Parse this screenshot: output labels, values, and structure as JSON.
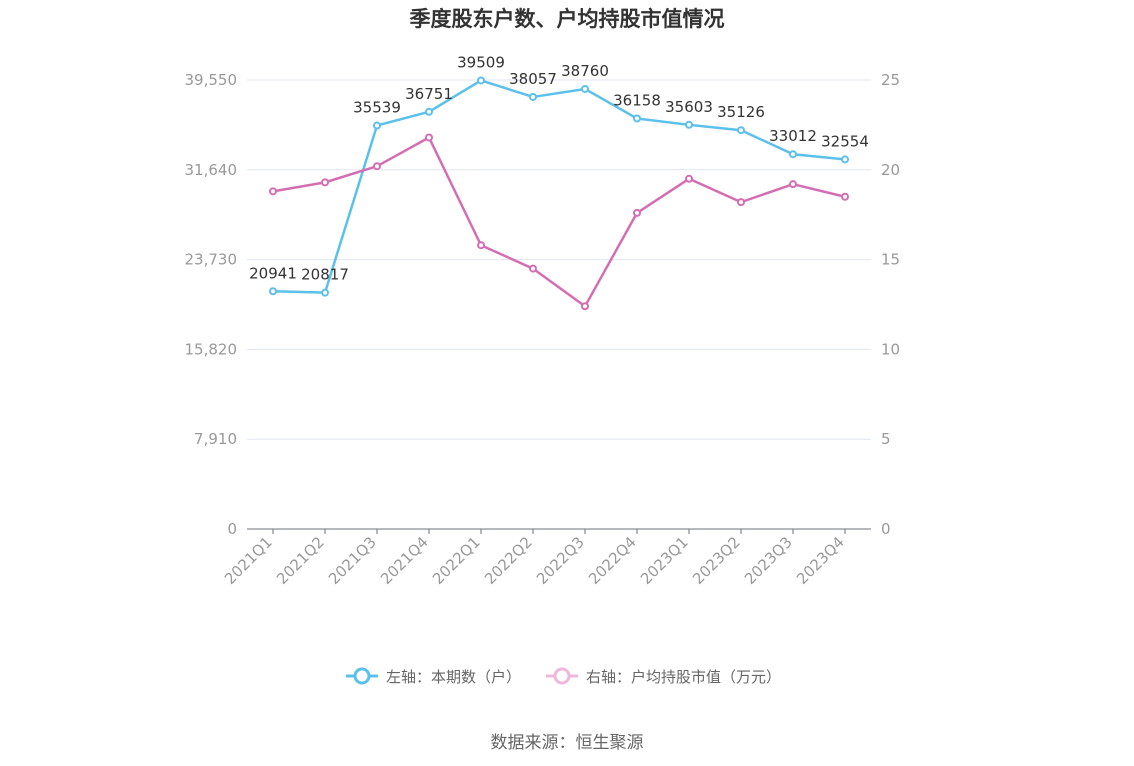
{
  "chart_data": {
    "type": "line",
    "title": "季度股东户数、户均持股市值情况",
    "categories": [
      "2021Q1",
      "2021Q2",
      "2021Q3",
      "2021Q4",
      "2022Q1",
      "2022Q2",
      "2022Q3",
      "2022Q4",
      "2023Q1",
      "2023Q2",
      "2023Q3",
      "2023Q4"
    ],
    "left_axis": {
      "ylim": [
        0,
        39550
      ],
      "ticks": [
        0,
        7910,
        15820,
        23730,
        31640,
        39550
      ],
      "tick_labels": [
        "0",
        "7,910",
        "15,820",
        "23,730",
        "31,640",
        "39,550"
      ]
    },
    "right_axis": {
      "ylim": [
        0,
        25
      ],
      "ticks": [
        0,
        5,
        10,
        15,
        20,
        25
      ],
      "tick_labels": [
        "0",
        "5",
        "10",
        "15",
        "20",
        "25"
      ]
    },
    "grid": true,
    "legend_position": "bottom-center",
    "series": [
      {
        "name": "左轴：本期数（户）",
        "axis": "left",
        "color": "#5bc0eb",
        "values": [
          20941,
          20817,
          35539,
          36751,
          39509,
          38057,
          38760,
          36158,
          35603,
          35126,
          33012,
          32554
        ],
        "labels": [
          "20941",
          "20817",
          "35539",
          "36751",
          "39509",
          "38057",
          "38760",
          "36158",
          "35603",
          "35126",
          "33012",
          "32554"
        ]
      },
      {
        "name": "右轴：户均持股市值（万元）",
        "axis": "right",
        "color": "#d46eb3",
        "values": [
          18.8,
          19.3,
          20.2,
          21.8,
          15.8,
          14.5,
          12.4,
          17.6,
          19.5,
          18.2,
          19.2,
          18.5
        ]
      }
    ]
  },
  "footer": {
    "source": "数据来源：恒生聚源"
  }
}
